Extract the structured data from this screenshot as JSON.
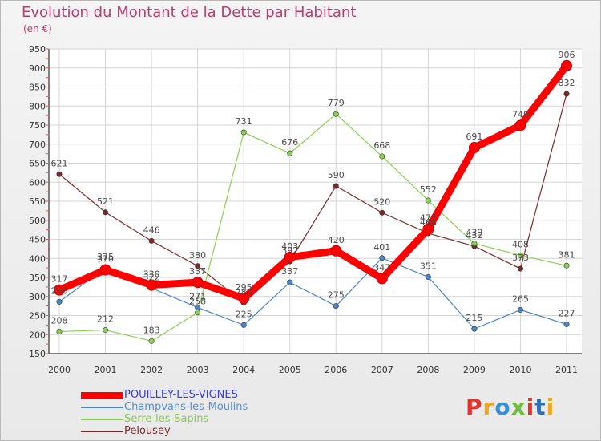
{
  "header": {
    "title": "Evolution du Montant de la Dette par Habitant",
    "subtitle": "(en €)"
  },
  "brand": {
    "letters": [
      "P",
      "r",
      "o",
      "x",
      "i",
      "t",
      "i"
    ],
    "colors": [
      "#e8312a",
      "#f2a51e",
      "#3a8fd6",
      "#6cbf3a",
      "#e8312a",
      "#2f6fb5",
      "#f2a51e"
    ]
  },
  "chart_data": {
    "type": "line",
    "title": "Evolution du Montant de la Dette par Habitant",
    "subtitle": "(en €)",
    "xlabel": "",
    "ylabel": "",
    "categories": [
      "2000",
      "2001",
      "2002",
      "2003",
      "2004",
      "2005",
      "2006",
      "2007",
      "2008",
      "2009",
      "2010",
      "2011"
    ],
    "ylim": [
      150,
      950
    ],
    "yticks": [
      150,
      200,
      250,
      300,
      350,
      400,
      450,
      500,
      550,
      600,
      650,
      700,
      750,
      800,
      850,
      900,
      950
    ],
    "grid": true,
    "legend_position": "bottom-left",
    "series": [
      {
        "name": "POUILLEY-LES-VIGNES",
        "color": "#ff0000",
        "legend_text_color": "#3b3bdc",
        "line_width": 9,
        "values": [
          317,
          370,
          330,
          337,
          295,
          403,
          420,
          347,
          477,
          691,
          749,
          906
        ],
        "labels": [
          "317",
          "370",
          "330",
          "337",
          "295",
          "403",
          "420",
          "347",
          "477",
          "691",
          "749",
          "906"
        ]
      },
      {
        "name": "Champvans-les-Moulins",
        "color": "#4a86c6",
        "legend_text_color": "#5a8ec8",
        "line_width": 1.2,
        "values": [
          286,
          375,
          322,
          271,
          225,
          337,
          275,
          401,
          351,
          215,
          265,
          227
        ],
        "labels": [
          "286",
          "375",
          "322",
          "271",
          "225",
          "337",
          "275",
          "401",
          "351",
          "215",
          "265",
          "227"
        ]
      },
      {
        "name": "Serre-les-Sapins",
        "color": "#88d050",
        "legend_text_color": "#86c84e",
        "line_width": 1.2,
        "values": [
          208,
          212,
          183,
          258,
          731,
          676,
          779,
          668,
          552,
          439,
          408,
          381
        ],
        "labels": [
          "208",
          "212",
          "183",
          "258",
          "731",
          "676",
          "779",
          "668",
          "552",
          "439",
          "408",
          "381"
        ]
      },
      {
        "name": "Pelousey",
        "color": "#7a2a2a",
        "legend_text_color": "#7a2a2a",
        "line_width": 1.2,
        "values": [
          621,
          521,
          446,
          380,
          283,
          392,
          590,
          520,
          466,
          432,
          373,
          832
        ],
        "labels": [
          "621",
          "521",
          "446",
          "380",
          "283",
          "392",
          "590",
          "520",
          "466",
          "432",
          "373",
          "832"
        ]
      }
    ]
  }
}
